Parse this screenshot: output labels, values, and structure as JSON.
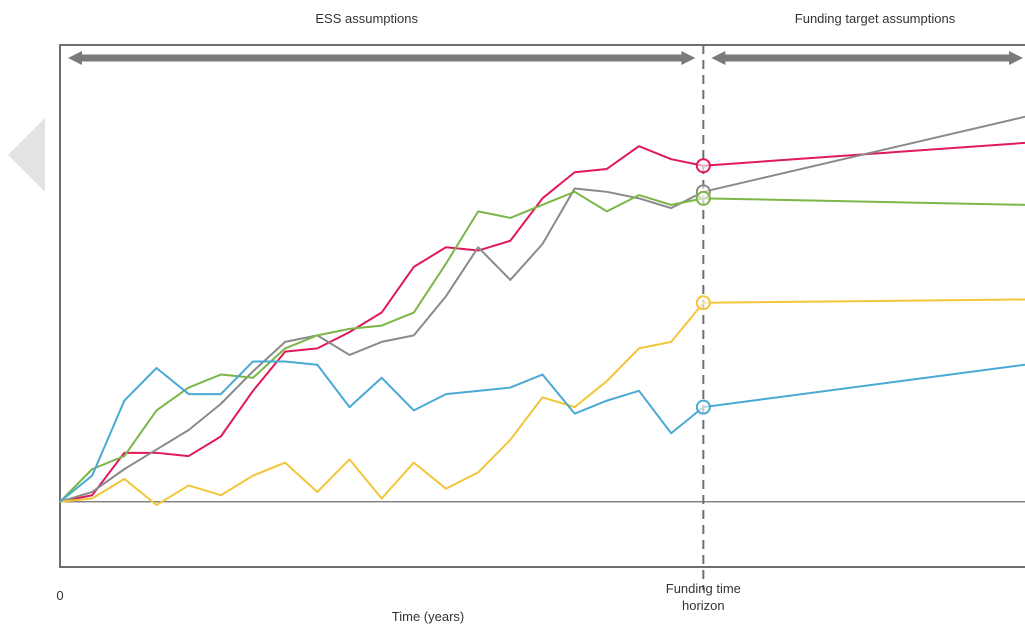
{
  "chart_data": {
    "type": "line",
    "title": "",
    "xlabel": "Time (years)",
    "ylabel": "",
    "x_tick_labels": {
      "origin": "0",
      "horizon": "Funding time horizon"
    },
    "horizon_label_lines": [
      "Funding time",
      "horizon"
    ],
    "phases": [
      {
        "label": "ESS assumptions",
        "x_range": [
          0,
          20
        ]
      },
      {
        "label": "Funding target assumptions",
        "x_range": [
          20,
          30
        ]
      }
    ],
    "xlim": [
      0,
      30
    ],
    "ylim": [
      -20,
      140
    ],
    "horizon_x": 20,
    "grid": false,
    "legend": "none",
    "x": [
      0,
      1,
      2,
      3,
      4,
      5,
      6,
      7,
      8,
      9,
      10,
      11,
      12,
      13,
      14,
      15,
      16,
      17,
      18,
      19,
      20,
      30
    ],
    "series": [
      {
        "color": "#e0195a",
        "values": [
          0,
          2,
          15,
          15,
          14,
          20,
          34,
          46,
          47,
          52,
          58,
          72,
          78,
          77,
          80,
          93,
          101,
          102,
          109,
          105,
          103,
          110
        ]
      },
      {
        "color": "#8a8a8a",
        "values": [
          0,
          3,
          10,
          16,
          22,
          30,
          40,
          49,
          51,
          45,
          49,
          51,
          63,
          78,
          68,
          79,
          96,
          95,
          93,
          90,
          95,
          118
        ]
      },
      {
        "color": "#7ab648",
        "values": [
          0,
          10,
          14,
          28,
          35,
          39,
          38,
          47,
          51,
          53,
          54,
          58,
          73,
          89,
          87,
          91,
          95,
          89,
          94,
          91,
          93,
          91
        ]
      },
      {
        "color": "#f2c53a",
        "values": [
          0,
          1,
          7,
          -1,
          5,
          2,
          8,
          12,
          3,
          13,
          1,
          12,
          4,
          9,
          19,
          32,
          29,
          37,
          47,
          49,
          61,
          62
        ]
      },
      {
        "color": "#4aa9d4",
        "values": [
          0,
          8,
          31,
          41,
          33,
          33,
          43,
          43,
          42,
          29,
          38,
          28,
          33,
          34,
          35,
          39,
          27,
          31,
          34,
          21,
          29,
          42
        ]
      }
    ]
  }
}
